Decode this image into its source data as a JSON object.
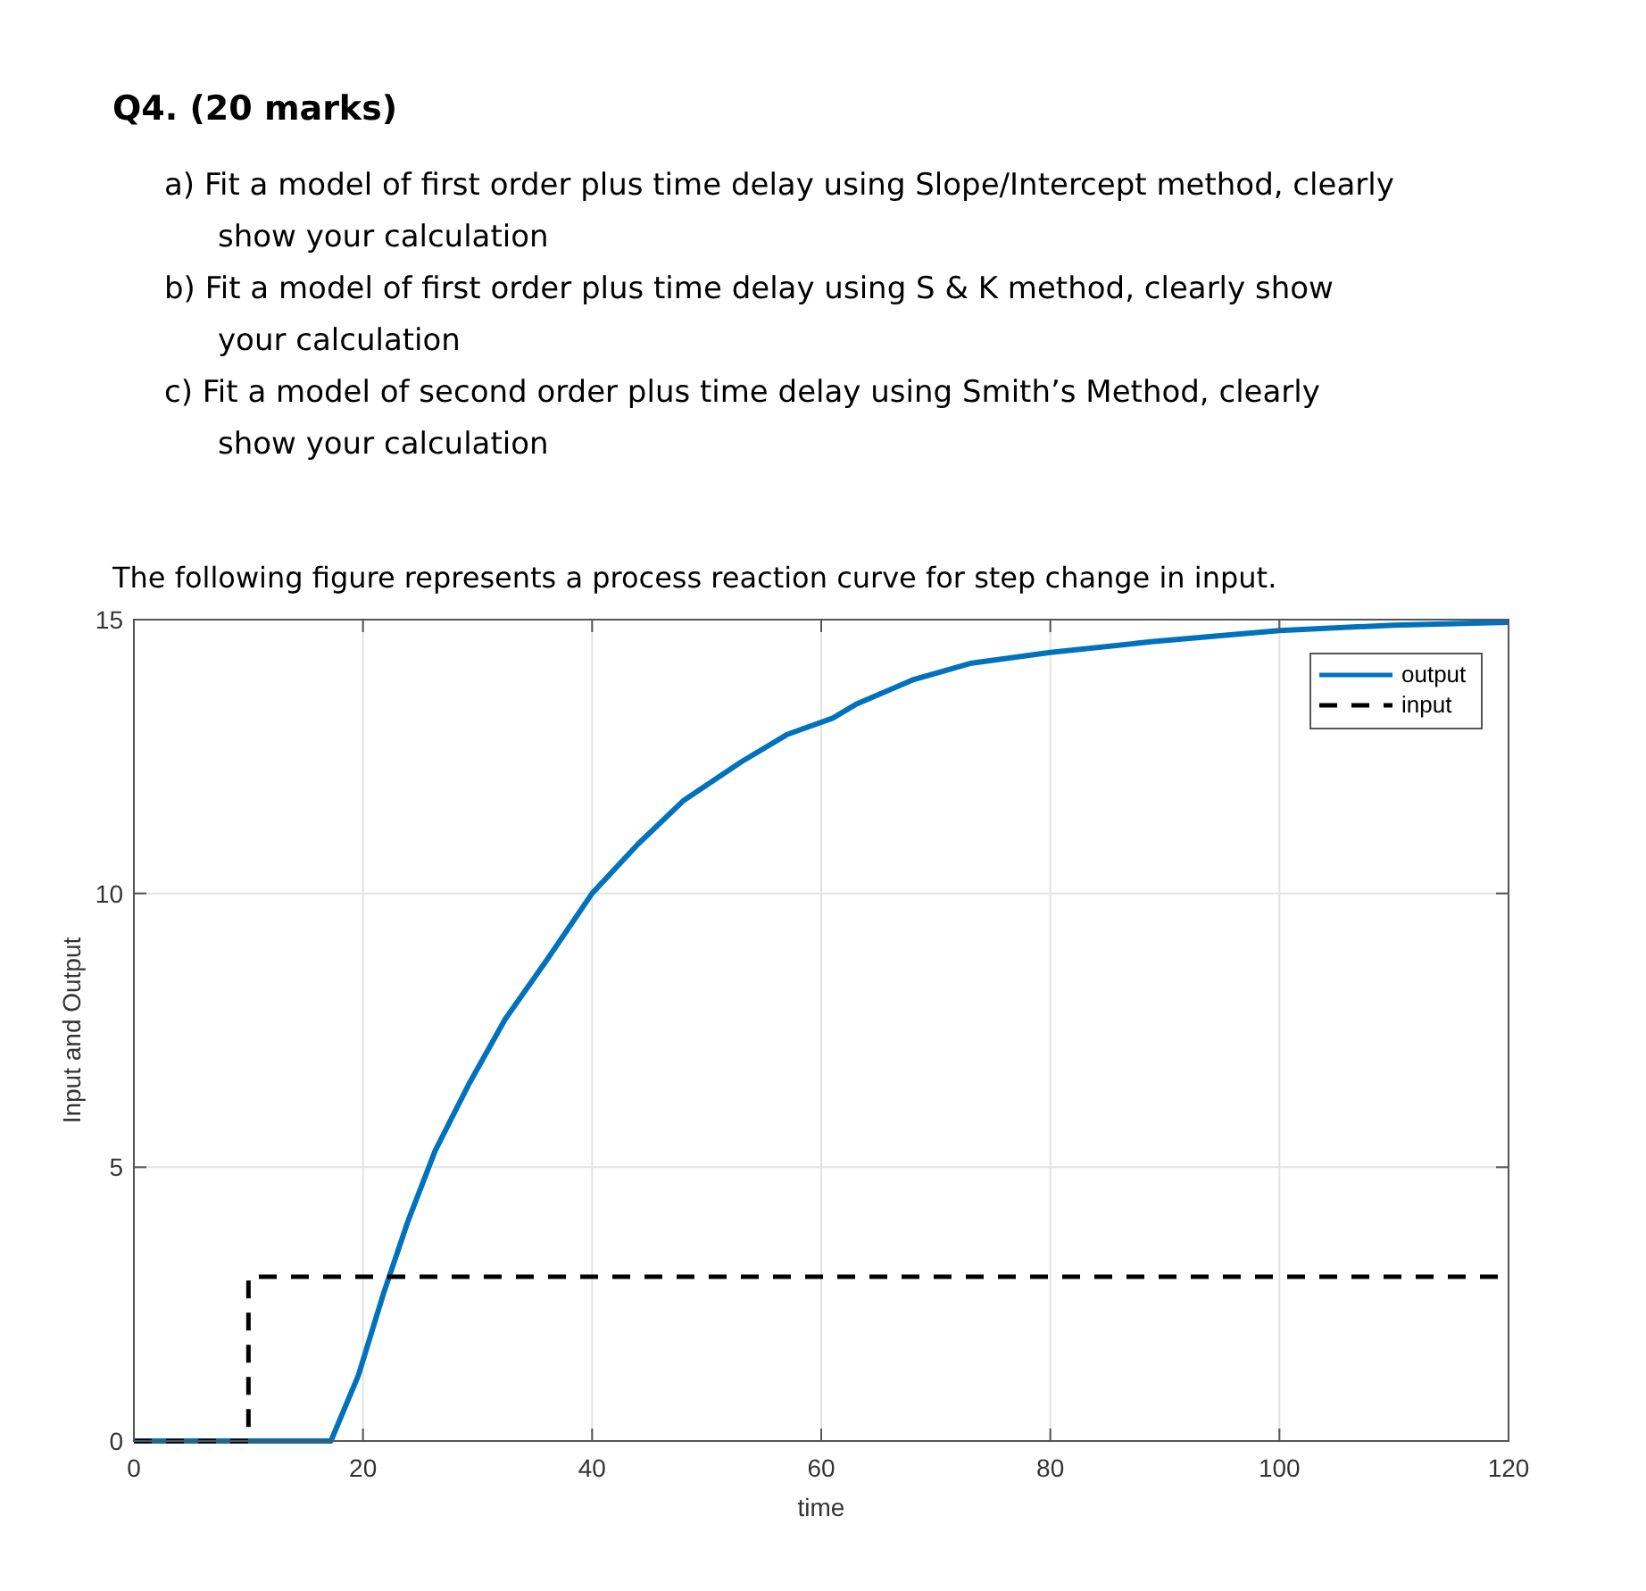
{
  "chart_data": {
    "type": "line",
    "title": "Q4. (20 marks)",
    "subtitle": "The following figure represents a process reaction curve for step change in input.",
    "annotations": [
      "a) Fit a model of first order plus time delay using Slope/Intercept method, clearly show your calculation",
      "b) Fit a model of first order plus time delay using S & K method, clearly show your calculation",
      "c) Fit a model of second order plus time delay using Smith’s Method, clearly show your calculation"
    ],
    "xlabel": "time",
    "ylabel": "Input and Output",
    "xlim": [
      0,
      120
    ],
    "ylim": [
      0,
      15
    ],
    "xticks": [
      0,
      20,
      40,
      60,
      80,
      100,
      120
    ],
    "yticks": [
      0,
      5,
      10,
      15
    ],
    "grid": true,
    "legend": "top right",
    "series": [
      {
        "name": "output",
        "color": "#0072bd",
        "line_style": "solid",
        "x": [
          0,
          17.2,
          19.6,
          21.8,
          23.9,
          26.3,
          29.2,
          32.4,
          36.1,
          40,
          44,
          48,
          53,
          57,
          61,
          63,
          68,
          73,
          80,
          89,
          100,
          110,
          120
        ],
        "values": [
          0,
          0,
          1.2,
          2.7,
          4,
          5.3,
          6.5,
          7.7,
          8.8,
          10,
          10.9,
          11.7,
          12.4,
          12.9,
          13.2,
          13.45,
          13.9,
          14.2,
          14.4,
          14.6,
          14.8,
          14.9,
          14.95
        ]
      },
      {
        "name": "input",
        "color": "#000000",
        "line_style": "dashed",
        "x": [
          0,
          10,
          10,
          120
        ],
        "values": [
          0,
          0,
          3,
          3
        ]
      }
    ]
  }
}
